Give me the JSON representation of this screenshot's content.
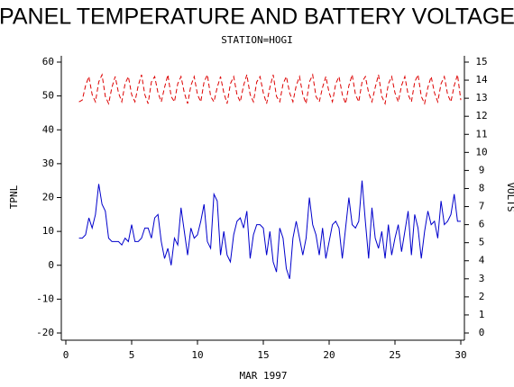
{
  "chart_data": {
    "type": "line",
    "title": "PANEL TEMPERATURE AND BATTERY VOLTAGE",
    "subtitle": "STATION=HOGI",
    "xlabel": "MAR 1997",
    "ylabel": "TPNL",
    "y2label": "VOLTS",
    "x": [
      1,
      1.25,
      1.5,
      1.75,
      2,
      2.25,
      2.5,
      2.75,
      3,
      3.25,
      3.5,
      3.75,
      4,
      4.25,
      4.5,
      4.75,
      5,
      5.25,
      5.5,
      5.75,
      6,
      6.25,
      6.5,
      6.75,
      7,
      7.25,
      7.5,
      7.75,
      8,
      8.25,
      8.5,
      8.75,
      9,
      9.25,
      9.5,
      9.75,
      10,
      10.25,
      10.5,
      10.75,
      11,
      11.25,
      11.5,
      11.75,
      12,
      12.25,
      12.5,
      12.75,
      13,
      13.25,
      13.5,
      13.75,
      14,
      14.25,
      14.5,
      14.75,
      15,
      15.25,
      15.5,
      15.75,
      16,
      16.25,
      16.5,
      16.75,
      17,
      17.25,
      17.5,
      17.75,
      18,
      18.25,
      18.5,
      18.75,
      19,
      19.25,
      19.5,
      19.75,
      20,
      20.25,
      20.5,
      20.75,
      21,
      21.25,
      21.5,
      21.75,
      22,
      22.25,
      22.5,
      22.75,
      23,
      23.25,
      23.5,
      23.75,
      24,
      24.25,
      24.5,
      24.75,
      25,
      25.25,
      25.5,
      25.75,
      26,
      26.25,
      26.5,
      26.75,
      27,
      27.25,
      27.5,
      27.75,
      28,
      28.25,
      28.5,
      28.75,
      29,
      29.25,
      29.5,
      29.75,
      30
    ],
    "series": [
      {
        "color": "#0000cc",
        "axis": "y",
        "values": [
          8,
          8,
          9,
          14,
          11,
          15,
          24,
          18,
          16,
          8,
          7,
          7,
          7,
          6,
          8,
          7,
          12,
          7,
          7,
          8,
          11,
          11,
          8,
          14,
          15,
          7,
          2,
          5,
          0,
          8,
          6,
          17,
          10,
          3,
          11,
          8,
          9,
          13,
          18,
          7,
          5,
          21,
          19,
          3,
          10,
          3,
          1,
          9,
          13,
          14,
          11,
          16,
          2,
          9,
          12,
          12,
          11,
          3,
          10,
          1,
          -2,
          11,
          8,
          -1,
          -4,
          8,
          13,
          8,
          3,
          8,
          20,
          12,
          9,
          3,
          11,
          2,
          7,
          12,
          13,
          11,
          2,
          11,
          20,
          12,
          11,
          13,
          25,
          13,
          2,
          17,
          8,
          5,
          10,
          2,
          12,
          3,
          8,
          12,
          4,
          10,
          16,
          3,
          15,
          11,
          2,
          10,
          16,
          12,
          13,
          8,
          19,
          12,
          13,
          15,
          21,
          13,
          13
        ]
      },
      {
        "color": "#dd0000",
        "axis": "y2",
        "dashed": true,
        "values": [
          12.8,
          12.9,
          13.7,
          14.2,
          13.2,
          12.8,
          13.9,
          14.3,
          13.1,
          12.7,
          13.6,
          14.2,
          13.3,
          12.8,
          13.8,
          14.2,
          13.2,
          12.8,
          13.7,
          14.3,
          13.2,
          12.7,
          13.9,
          14.2,
          13.3,
          12.8,
          13.6,
          14.3,
          13.1,
          12.8,
          13.8,
          14.2,
          13.3,
          12.7,
          13.7,
          14.2,
          13.2,
          12.8,
          13.9,
          14.3,
          13.1,
          12.8,
          13.6,
          14.2,
          13.3,
          12.7,
          13.8,
          14.2,
          13.2,
          12.8,
          13.7,
          14.3,
          13.2,
          12.8,
          13.9,
          14.2,
          13.3,
          12.7,
          13.6,
          14.3,
          13.1,
          12.8,
          13.8,
          14.2,
          13.3,
          12.8,
          13.7,
          14.2,
          13.2,
          12.7,
          13.9,
          14.3,
          13.1,
          12.8,
          13.6,
          14.2,
          13.3,
          12.8,
          13.8,
          14.2,
          13.2,
          12.7,
          13.7,
          14.3,
          13.2,
          12.8,
          13.9,
          14.2,
          13.3,
          12.8,
          13.6,
          14.3,
          13.1,
          12.7,
          13.8,
          14.2,
          13.3,
          12.8,
          13.7,
          14.2,
          13.2,
          12.8,
          13.9,
          14.3,
          13.1,
          12.7,
          13.6,
          14.2,
          13.3,
          12.8,
          13.8,
          14.2,
          13.2,
          12.8,
          13.7,
          14.3,
          12.9
        ]
      }
    ],
    "xlim": [
      0,
      30
    ],
    "xticks": [
      0,
      5,
      10,
      15,
      20,
      25,
      30
    ],
    "ylim": [
      -20,
      60
    ],
    "yticks": [
      -20,
      -10,
      0,
      10,
      20,
      30,
      40,
      50,
      60
    ],
    "y2lim": [
      0,
      15
    ],
    "y2ticks": [
      0,
      1,
      2,
      3,
      4,
      5,
      6,
      7,
      8,
      9,
      10,
      11,
      12,
      13,
      14,
      15
    ]
  }
}
